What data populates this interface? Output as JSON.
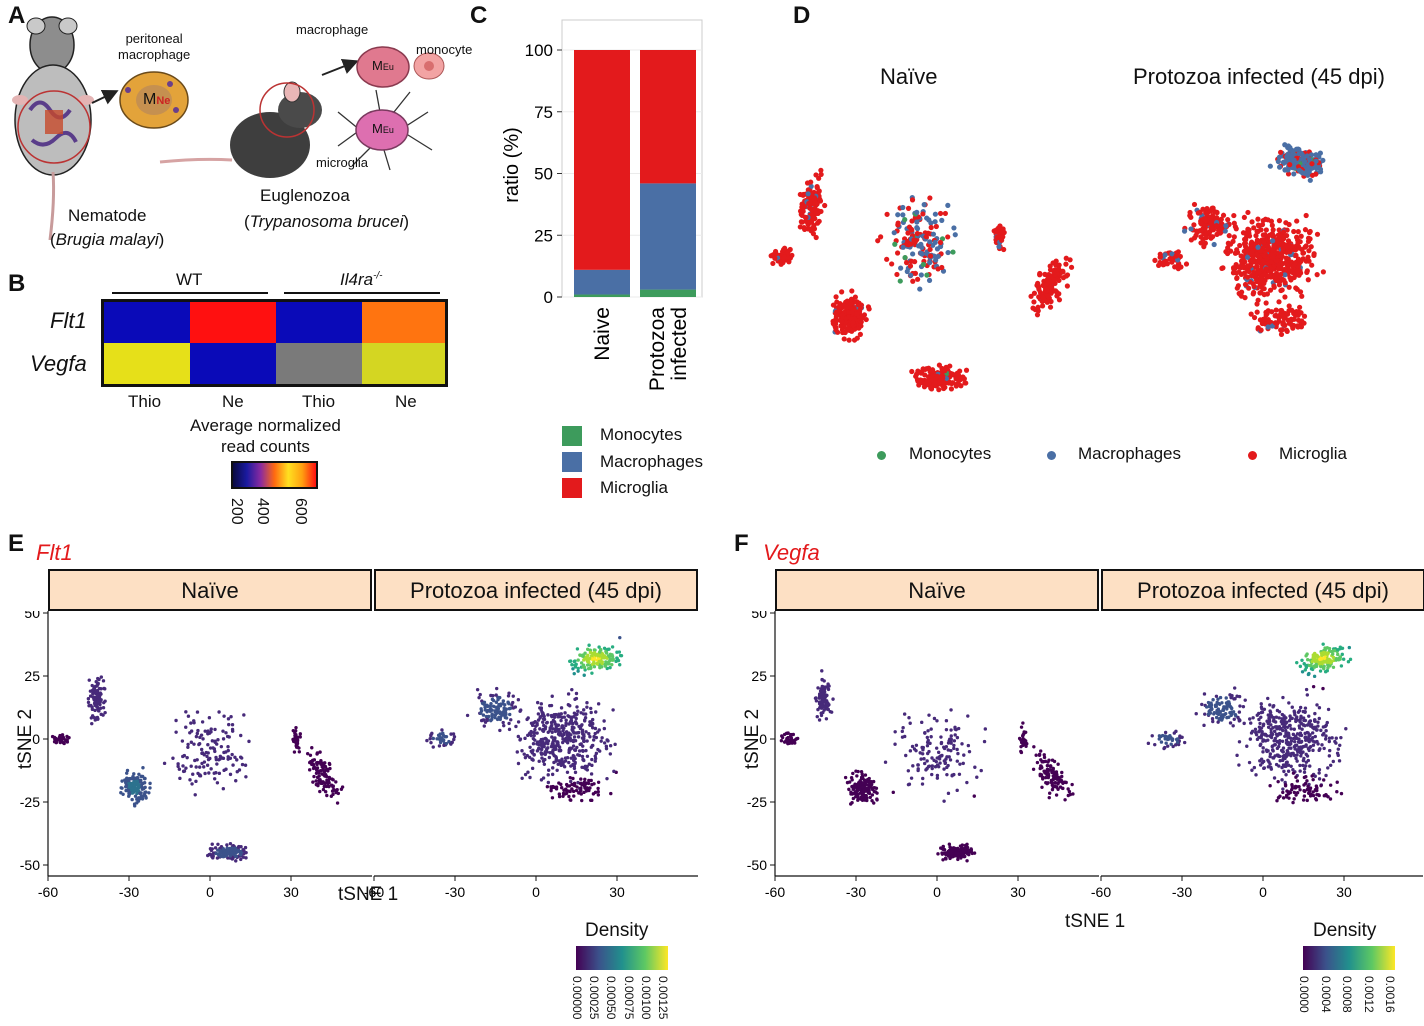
{
  "panels": {
    "a": "A",
    "b": "B",
    "c": "C",
    "d": "D",
    "e": "E",
    "f": "F"
  },
  "panel_a": {
    "peritoneal_macrophage": "peritoneal\nmacrophage",
    "macrophage": "macrophage",
    "monocyte": "monocyte",
    "microglia": "microglia",
    "nematode": "Nematode",
    "nematode_species": "Brugia malayi",
    "euglenozoa": "Euglenozoa",
    "euglenozoa_species": "Trypanosoma brucei",
    "m_ne": "M",
    "ne_sub": "Ne",
    "eu_sub": "Eu"
  },
  "panel_b": {
    "group_wt": "WT",
    "group_il4ra": "Il4ra",
    "il4ra_sup": "-/-",
    "rows": [
      "Flt1",
      "Vegfa"
    ],
    "columns": [
      "Thio",
      "Ne",
      "Thio",
      "Ne"
    ],
    "cell_colors": [
      [
        "#0a0ab8",
        "#ff1010",
        "#0a0ab8",
        "#ff7410"
      ],
      [
        "#e6e019",
        "#0a0ab8",
        "#7a7a7a",
        "#d4d622"
      ]
    ],
    "legend_title": "Average normalized\nread counts",
    "legend_ticks": [
      "200",
      "400",
      "600"
    ]
  },
  "panel_c": {
    "chart_data": {
      "type": "bar",
      "stacked": true,
      "categories": [
        "Naive",
        "Protozoa infected"
      ],
      "category_lines": [
        [
          "Naive"
        ],
        [
          "Protozoa",
          "infected"
        ]
      ],
      "series": [
        {
          "name": "Monocytes",
          "color": "#3d9b5c",
          "values": [
            1,
            3
          ]
        },
        {
          "name": "Macrophages",
          "color": "#4a6fa5",
          "values": [
            10,
            43
          ]
        },
        {
          "name": "Microglia",
          "color": "#e31a1c",
          "values": [
            89,
            54
          ]
        }
      ],
      "ylabel": "ratio (%)",
      "yticks": [
        "0",
        "25",
        "50",
        "75",
        "100"
      ],
      "ylim": [
        0,
        100
      ]
    },
    "legend": [
      "Monocytes",
      "Macrophages",
      "Microglia"
    ]
  },
  "panel_d": {
    "titles": [
      "Naïve",
      "Protozoa infected (45 dpi)"
    ],
    "legend": [
      {
        "label": "Monocytes",
        "color": "#3d9b5c"
      },
      {
        "label": "Macrophages",
        "color": "#4a6fa5"
      },
      {
        "label": "Microglia",
        "color": "#e31a1c"
      }
    ]
  },
  "panel_e": {
    "gene": "Flt1",
    "facets": [
      "Naïve",
      "Protozoa infected (45 dpi)"
    ],
    "xlabel": "tSNE 1",
    "ylabel": "tSNE 2",
    "xticks": [
      "-60",
      "-30",
      "0",
      "30"
    ],
    "yticks": [
      "50",
      "25",
      "0",
      "-25",
      "-50"
    ],
    "legend_title": "Density",
    "legend_ticks": [
      "0.00000",
      "0.00025",
      "0.00050",
      "0.00075",
      "0.00100",
      "0.00125"
    ]
  },
  "panel_f": {
    "gene": "Vegfa",
    "facets": [
      "Naïve",
      "Protozoa infected (45 dpi)"
    ],
    "xlabel": "tSNE 1",
    "ylabel": "tSNE 2",
    "xticks": [
      "-60",
      "-30",
      "0",
      "30"
    ],
    "yticks": [
      "50",
      "25",
      "0",
      "-25",
      "-50"
    ],
    "legend_title": "Density",
    "legend_ticks": [
      "0.0000",
      "0.0004",
      "0.0008",
      "0.0012",
      "0.0016"
    ]
  }
}
